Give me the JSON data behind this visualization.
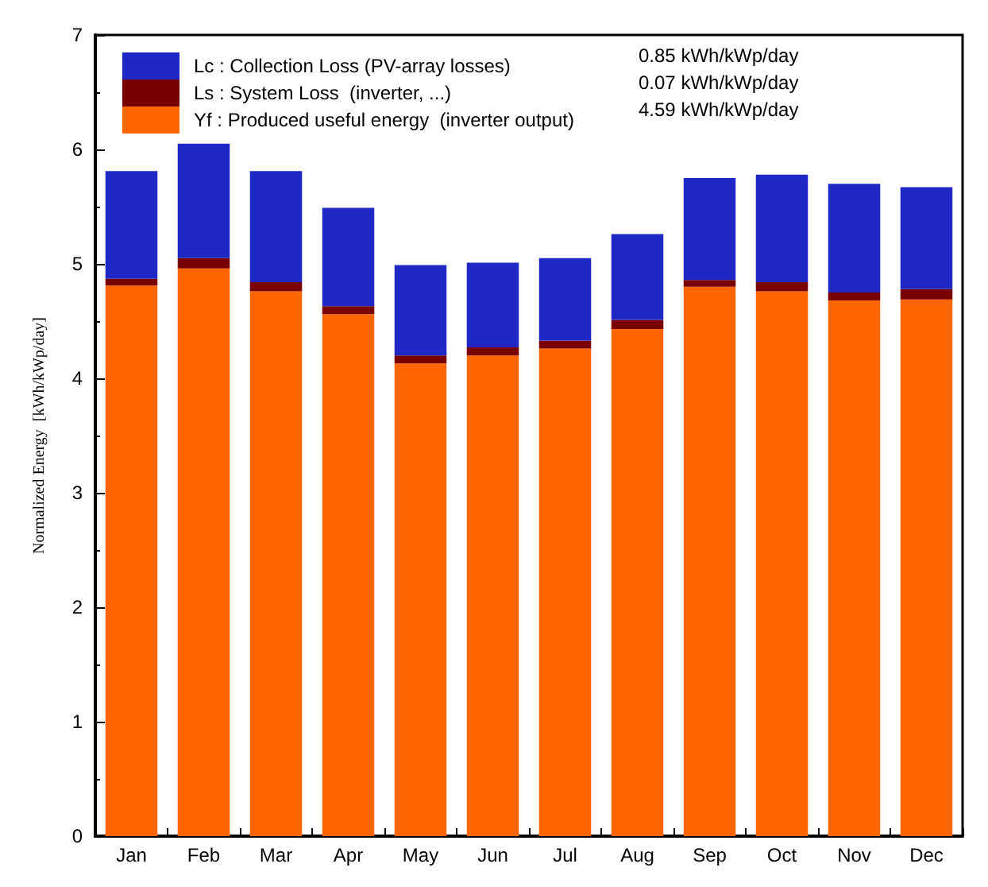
{
  "chart_data": {
    "type": "bar",
    "stacked": true,
    "ylabel": "Normalized Energy  [kWh/kWp/day]",
    "categories": [
      "Jan",
      "Feb",
      "Mar",
      "Apr",
      "May",
      "Jun",
      "Jul",
      "Aug",
      "Sep",
      "Oct",
      "Nov",
      "Dec"
    ],
    "series": [
      {
        "name": "Yf : Produced useful energy  (inverter output)",
        "color": "#ff6600",
        "values": [
          4.81,
          4.96,
          4.76,
          4.56,
          4.13,
          4.2,
          4.26,
          4.43,
          4.8,
          4.76,
          4.68,
          4.69
        ]
      },
      {
        "name": "Ls : System Loss  (inverter, ...)",
        "color": "#7a0000",
        "values": [
          0.06,
          0.09,
          0.08,
          0.07,
          0.07,
          0.07,
          0.07,
          0.08,
          0.06,
          0.08,
          0.07,
          0.09
        ]
      },
      {
        "name": "Lc : Collection Loss (PV-array losses)",
        "color": "#1f28c4",
        "values": [
          0.94,
          1.0,
          0.97,
          0.86,
          0.79,
          0.74,
          0.72,
          0.75,
          0.89,
          0.94,
          0.95,
          0.89
        ]
      }
    ],
    "annotations": [
      "4.59 kWh/kWp/day",
      "0.07 kWh/kWp/day",
      "0.85 kWh/kWp/day"
    ],
    "ylim": [
      0,
      7
    ],
    "yticks": [
      0,
      1,
      2,
      3,
      4,
      5,
      6,
      7
    ],
    "grid": false,
    "legend": "top left"
  }
}
